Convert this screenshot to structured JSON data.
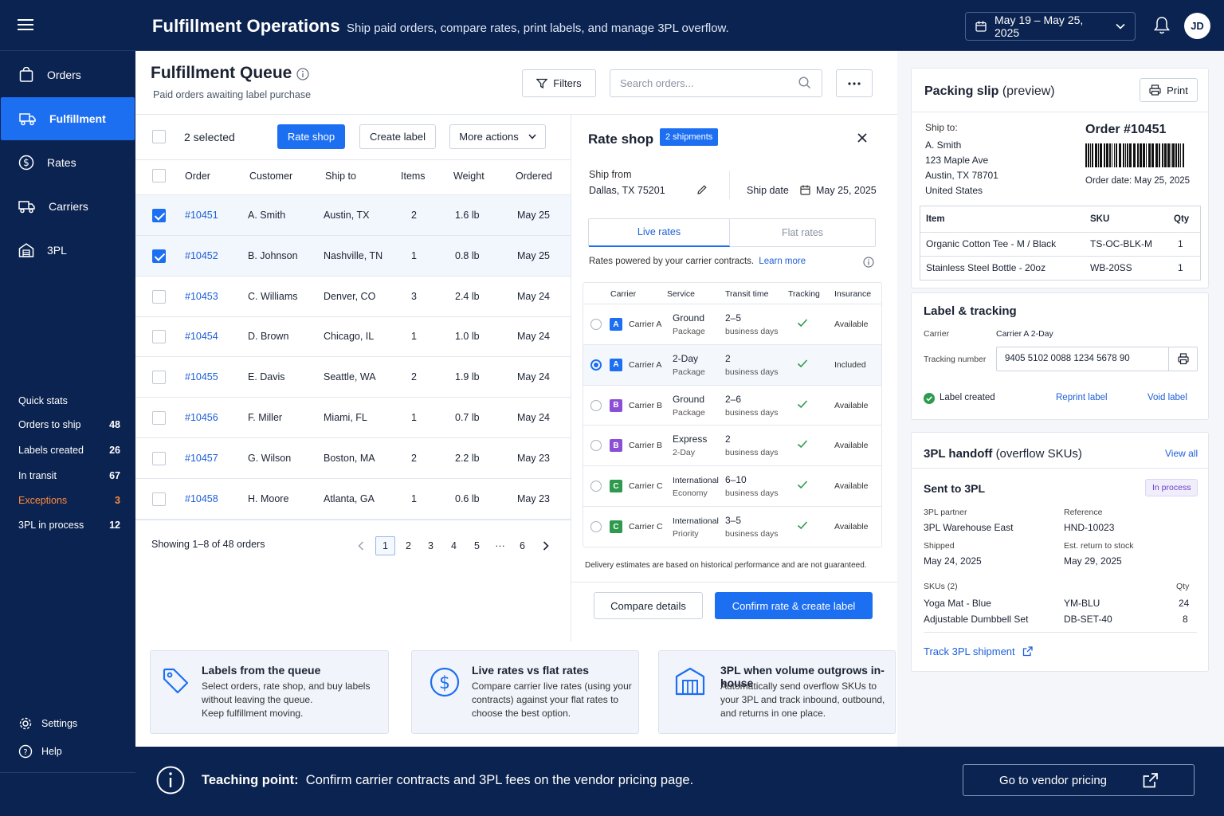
{
  "header": {
    "title": "Fulfillment Operations",
    "subtitle": "Ship paid orders, compare rates, print labels, and manage 3PL overflow.",
    "date_range": "May 19 – May 25, 2025",
    "avatar": "JD"
  },
  "sidebar": {
    "items": [
      {
        "label": "Orders",
        "icon": "bag-icon"
      },
      {
        "label": "Fulfillment",
        "icon": "truck-icon"
      },
      {
        "label": "Rates",
        "icon": "dollar-icon"
      },
      {
        "label": "Carriers",
        "icon": "truck-icon"
      },
      {
        "label": "3PL",
        "icon": "warehouse-icon"
      }
    ],
    "quick_stats_title": "Quick stats",
    "quick_stats": [
      {
        "label": "Orders to ship",
        "value": "48"
      },
      {
        "label": "Labels created",
        "value": "26"
      },
      {
        "label": "In transit",
        "value": "67"
      },
      {
        "label": "Exceptions",
        "value": "3"
      },
      {
        "label": "3PL in process",
        "value": "12"
      }
    ],
    "settings": "Settings",
    "help": "Help"
  },
  "queue": {
    "title": "Fulfillment Queue",
    "subtitle": "Paid orders awaiting label purchase",
    "filters": "Filters",
    "search_placeholder": "Search orders...",
    "selected": "2 selected",
    "rate_shop": "Rate shop",
    "create_label": "Create label",
    "more_actions": "More actions",
    "columns": [
      "Order",
      "Customer",
      "Ship to",
      "Items",
      "Weight",
      "Ordered"
    ],
    "rows": [
      {
        "order": "#10451",
        "customer": "A. Smith",
        "ship_to": "Austin, TX",
        "items": "2",
        "weight": "1.6 lb",
        "ordered": "May 25",
        "checked": true
      },
      {
        "order": "#10452",
        "customer": "B. Johnson",
        "ship_to": "Nashville, TN",
        "items": "1",
        "weight": "0.8 lb",
        "ordered": "May 25",
        "checked": true
      },
      {
        "order": "#10453",
        "customer": "C. Williams",
        "ship_to": "Denver, CO",
        "items": "3",
        "weight": "2.4 lb",
        "ordered": "May 24",
        "checked": false
      },
      {
        "order": "#10454",
        "customer": "D. Brown",
        "ship_to": "Chicago, IL",
        "items": "1",
        "weight": "1.0 lb",
        "ordered": "May 24",
        "checked": false
      },
      {
        "order": "#10455",
        "customer": "E. Davis",
        "ship_to": "Seattle, WA",
        "items": "2",
        "weight": "1.9 lb",
        "ordered": "May 24",
        "checked": false
      },
      {
        "order": "#10456",
        "customer": "F. Miller",
        "ship_to": "Miami, FL",
        "items": "1",
        "weight": "0.7 lb",
        "ordered": "May 24",
        "checked": false
      },
      {
        "order": "#10457",
        "customer": "G. Wilson",
        "ship_to": "Boston, MA",
        "items": "2",
        "weight": "2.2 lb",
        "ordered": "May 23",
        "checked": false
      },
      {
        "order": "#10458",
        "customer": "H. Moore",
        "ship_to": "Atlanta, GA",
        "items": "1",
        "weight": "0.6 lb",
        "ordered": "May 23",
        "checked": false
      }
    ],
    "showing": "Showing 1–8 of 48 orders",
    "pages": [
      "1",
      "2",
      "3",
      "4",
      "5",
      "···",
      "6"
    ]
  },
  "rate_shop": {
    "title": "Rate shop",
    "badge": "2 shipments",
    "ship_from_label": "Ship from",
    "ship_from": "Dallas, TX 75201",
    "ship_date_label": "Ship date",
    "ship_date": "May 25, 2025",
    "tab_live": "Live rates",
    "tab_flat": "Flat rates",
    "powered": "Rates powered by your carrier contracts.",
    "learn_more": "Learn more",
    "columns": [
      "Carrier",
      "Service",
      "Transit time",
      "Tracking",
      "Insurance"
    ],
    "rates": [
      {
        "logo": "A",
        "carrier": "Carrier A",
        "service": "Ground",
        "service_sub": "Package",
        "transit": "2–5",
        "transit_sub": "business days",
        "insurance": "Available",
        "selected": false,
        "color": "#1d6ff2",
        "small_service": false
      },
      {
        "logo": "A",
        "carrier": "Carrier A",
        "service": "2-Day",
        "service_sub": "Package",
        "transit": "2",
        "transit_sub": "business days",
        "insurance": "Included",
        "selected": true,
        "color": "#1d6ff2",
        "small_service": false
      },
      {
        "logo": "B",
        "carrier": "Carrier B",
        "service": "Ground",
        "service_sub": "Package",
        "transit": "2–6",
        "transit_sub": "business days",
        "insurance": "Available",
        "selected": false,
        "color": "#8b4fd6",
        "small_service": false
      },
      {
        "logo": "B",
        "carrier": "Carrier B",
        "service": "Express",
        "service_sub": "2-Day",
        "transit": "2",
        "transit_sub": "business days",
        "insurance": "Available",
        "selected": false,
        "color": "#8b4fd6",
        "small_service": false
      },
      {
        "logo": "C",
        "carrier": "Carrier C",
        "service": "International",
        "service_sub": "Economy",
        "transit": "6–10",
        "transit_sub": "business days",
        "insurance": "Available",
        "selected": false,
        "color": "#2e9a4e",
        "small_service": true
      },
      {
        "logo": "C",
        "carrier": "Carrier C",
        "service": "International",
        "service_sub": "Priority",
        "transit": "3–5",
        "transit_sub": "business days",
        "insurance": "Available",
        "selected": false,
        "color": "#2e9a4e",
        "small_service": true
      }
    ],
    "disclaimer": "Delivery estimates are based on historical performance and are not guaranteed.",
    "compare": "Compare details",
    "confirm": "Confirm rate & create label"
  },
  "features": [
    {
      "title": "Labels from the queue",
      "lines": [
        "Select orders, rate shop, and buy labels",
        "without leaving the queue.",
        "Keep fulfillment moving."
      ],
      "icon": "tag-icon"
    },
    {
      "title": "Live rates vs flat rates",
      "lines": [
        "Compare carrier live rates (using your",
        "contracts) against your flat rates to",
        "choose the best option."
      ],
      "icon": "dollar-icon"
    },
    {
      "title": "3PL when volume outgrows in-house",
      "lines": [
        "Automatically send overflow SKUs to",
        "your 3PL and track inbound, outbound,",
        "and returns in one place."
      ],
      "icon": "warehouse-icon"
    }
  ],
  "packing_slip": {
    "title": "Packing slip",
    "title_suffix": "(preview)",
    "print": "Print",
    "ship_to_label": "Ship to:",
    "address": [
      "A. Smith",
      "123 Maple Ave",
      "Austin, TX 78701",
      "United States"
    ],
    "order": "Order #10451",
    "order_date": "Order date: May 25, 2025",
    "columns": [
      "Item",
      "SKU",
      "Qty"
    ],
    "items": [
      {
        "item": "Organic Cotton Tee - M / Black",
        "sku": "TS-OC-BLK-M",
        "qty": "1"
      },
      {
        "item": "Stainless Steel Bottle - 20oz",
        "sku": "WB-20SS",
        "qty": "1"
      }
    ]
  },
  "label_tracking": {
    "title": "Label & tracking",
    "carrier_label": "Carrier",
    "carrier": "Carrier A 2-Day",
    "tracking_label": "Tracking number",
    "tracking": "9405 5102 0088 1234 5678 90",
    "status": "Label created",
    "reprint": "Reprint label",
    "void": "Void label"
  },
  "tpl": {
    "title": "3PL handoff",
    "title_suffix": "(overflow SKUs)",
    "view_all": "View all",
    "sent": "Sent to 3PL",
    "status": "In process",
    "partner_label": "3PL partner",
    "partner": "3PL Warehouse East",
    "ref_label": "Reference",
    "ref": "HND-10023",
    "shipped_label": "Shipped",
    "shipped": "May 24, 2025",
    "return_label": "Est. return to stock",
    "return": "May 29, 2025",
    "skus_label": "SKUs (2)",
    "qty_label": "Qty",
    "skus": [
      {
        "name": "Yoga Mat - Blue",
        "sku": "YM-BLU",
        "qty": "24"
      },
      {
        "name": "Adjustable Dumbbell Set",
        "sku": "DB-SET-40",
        "qty": "8"
      }
    ],
    "track": "Track 3PL shipment"
  },
  "teaching": {
    "label": "Teaching point:",
    "text": "Confirm carrier contracts and 3PL fees on the vendor pricing page.",
    "button": "Go to vendor pricing"
  },
  "colors": {
    "navy": "#0b2350",
    "accent": "#1d6ff2",
    "warning": "#ff8a3c",
    "success": "#2e9a4e"
  }
}
